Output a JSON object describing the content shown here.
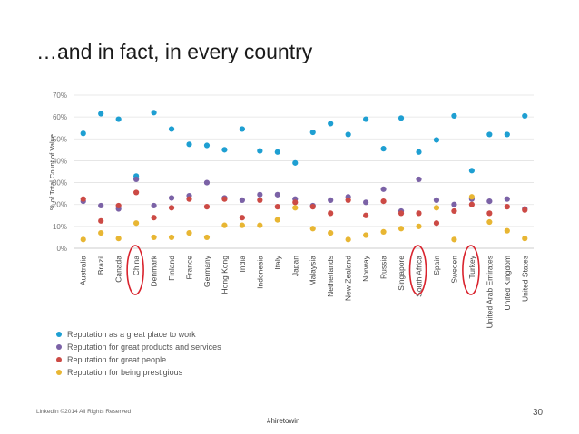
{
  "slide": {
    "title": "…and in fact, in every country",
    "footer_left": "LinkedIn ©2014 All Rights Reserved",
    "footer_center": "#hiretowin",
    "page_number": "30"
  },
  "chart_data": {
    "type": "scatter",
    "title": "…and in fact, in every country",
    "xlabel": "",
    "ylabel": "% of Total Count of Value",
    "ylim": [
      0,
      70
    ],
    "yticks": [
      0,
      10,
      20,
      30,
      40,
      50,
      60,
      70
    ],
    "ytick_labels": [
      "0%",
      "10%",
      "20%",
      "30%",
      "40%",
      "50%",
      "60%",
      "70%"
    ],
    "grid": true,
    "legend_position": "bottom-left",
    "categories": [
      "Australia",
      "Brazil",
      "Canada",
      "China",
      "Denmark",
      "Finland",
      "France",
      "Germany",
      "Hong Kong",
      "India",
      "Indonesia",
      "Italy",
      "Japan",
      "Malaysia",
      "Netherlands",
      "New Zealand",
      "Norway",
      "Russia",
      "Singapore",
      "South Africa",
      "Spain",
      "Sweden",
      "Turkey",
      "United Arab Emirates",
      "United Kingdom",
      "United States"
    ],
    "series": [
      {
        "name": "Reputation as a great place to work",
        "color": "#1e9fd2",
        "values": [
          52.5,
          61.5,
          59,
          33,
          62,
          54.5,
          47.5,
          47,
          45,
          54.5,
          44.5,
          44,
          39,
          53,
          57,
          52,
          59,
          45.5,
          59.5,
          44,
          49.5,
          60.5,
          35.5,
          52,
          52,
          60.5
        ]
      },
      {
        "name": "Reputation for great products and services",
        "color": "#7b62a6",
        "values": [
          21.5,
          19.5,
          18,
          31.5,
          19.5,
          23,
          24,
          30,
          23,
          22,
          24.5,
          24.5,
          22.5,
          19.5,
          22,
          23.5,
          21,
          27,
          17,
          31.5,
          22,
          20,
          22.5,
          21.5,
          22.5,
          18
        ]
      },
      {
        "name": "Reputation for great people",
        "color": "#cc4a45",
        "values": [
          22.5,
          12.5,
          19.5,
          25.5,
          14,
          18.5,
          22.5,
          19,
          22.5,
          14,
          22,
          19,
          21,
          19,
          16,
          22,
          15,
          21.5,
          16,
          16,
          11.5,
          17,
          20,
          16,
          19,
          17.5
        ]
      },
      {
        "name": "Reputation for being prestigious",
        "color": "#e8b633",
        "values": [
          4,
          7,
          4.5,
          11.5,
          5,
          5,
          7,
          5,
          10.5,
          10.5,
          10.5,
          13,
          18.5,
          9,
          7,
          4,
          6,
          7.5,
          9,
          10,
          18.5,
          4,
          23.5,
          12,
          8,
          4.5
        ]
      }
    ],
    "highlighted_categories": [
      "China",
      "South Africa",
      "Turkey"
    ],
    "highlight_color": "#d9232d"
  }
}
